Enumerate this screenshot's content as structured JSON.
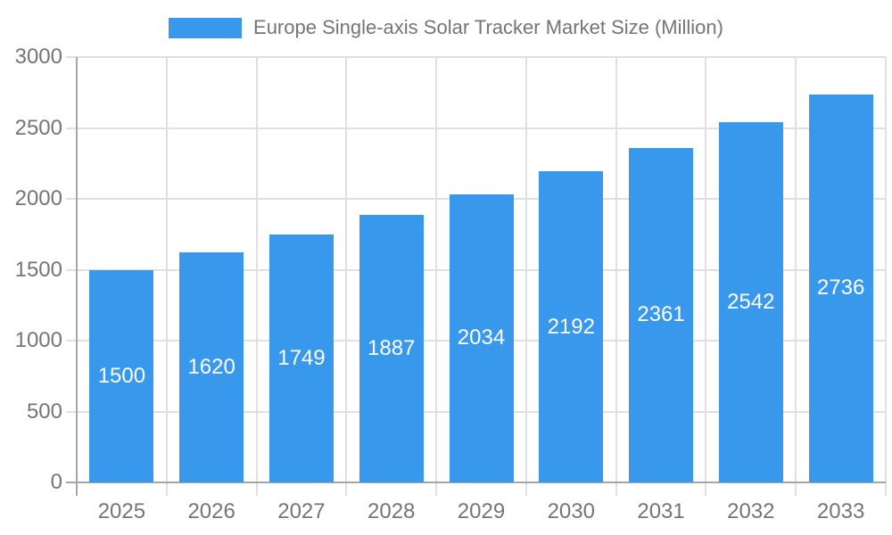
{
  "chart_data": {
    "type": "bar",
    "title": "Europe Single-axis Solar Tracker Market Size (Million)",
    "legend": {
      "position": "top",
      "label": "Europe Single-axis Solar Tracker Market Size (Million)"
    },
    "categories": [
      "2025",
      "2026",
      "2027",
      "2028",
      "2029",
      "2030",
      "2031",
      "2032",
      "2033"
    ],
    "values": [
      1500,
      1620,
      1749,
      1887,
      2034,
      2192,
      2361,
      2542,
      2736
    ],
    "xlabel": "",
    "ylabel": "",
    "ylim": [
      0,
      3000
    ],
    "ytick_step": 500,
    "ytick_labels": [
      "0",
      "500",
      "1000",
      "1500",
      "2000",
      "2500",
      "3000"
    ],
    "grid": true,
    "value_label_position": "inside-center",
    "colors": {
      "bar": "#3898EC",
      "value_label": "#ffffff",
      "axis_text": "#757575",
      "legend_text": "#757575",
      "grid_line": "#e0e0e0",
      "axis_line": "#a6a6a6",
      "background": "#ffffff"
    }
  }
}
